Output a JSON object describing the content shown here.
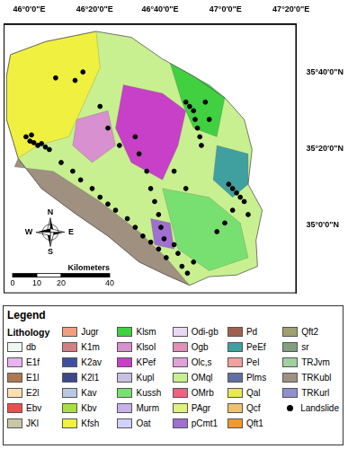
{
  "chart_data": {
    "type": "map",
    "xlim": [
      45.87,
      47.36
    ],
    "xticks": [
      {
        "value": 46,
        "label": "46°0'0\"E"
      },
      {
        "value": 46.3333,
        "label": "46°20'0\"E"
      },
      {
        "value": 46.6667,
        "label": "46°40'0\"E"
      },
      {
        "value": 47,
        "label": "47°0'0\"E"
      },
      {
        "value": 47.3333,
        "label": "47°20'0\"E"
      }
    ],
    "ylim": [
      34.7,
      35.88
    ],
    "yticks": [
      {
        "value": 35,
        "label": "35°0'0\"N"
      },
      {
        "value": 35.3333,
        "label": "35°20'0\"N"
      },
      {
        "value": 35.6667,
        "label": "35°40'0\"N"
      }
    ],
    "grid": false,
    "study_area": {
      "lithology": "OMql",
      "outline": [
        [
          45.905,
          35.746
        ],
        [
          46.083,
          35.803
        ],
        [
          46.341,
          35.848
        ],
        [
          46.52,
          35.822
        ],
        [
          46.679,
          35.727
        ],
        [
          46.837,
          35.652
        ],
        [
          46.996,
          35.557
        ],
        [
          47.095,
          35.462
        ],
        [
          47.135,
          35.33
        ],
        [
          47.115,
          35.178
        ],
        [
          47.187,
          35.064
        ],
        [
          47.155,
          34.932
        ],
        [
          47.163,
          34.818
        ],
        [
          47.056,
          34.78
        ],
        [
          46.917,
          34.773
        ],
        [
          46.817,
          34.735
        ],
        [
          46.698,
          34.78
        ],
        [
          46.56,
          34.837
        ],
        [
          46.401,
          34.951
        ],
        [
          46.242,
          35.045
        ],
        [
          46.063,
          35.159
        ],
        [
          45.944,
          35.292
        ],
        [
          45.885,
          35.462
        ],
        [
          45.885,
          35.652
        ]
      ]
    },
    "lithology_units": [
      {
        "name": "Kfsh",
        "polygon": [
          [
            45.905,
            35.746
          ],
          [
            46.083,
            35.803
          ],
          [
            46.341,
            35.848
          ],
          [
            46.361,
            35.689
          ],
          [
            46.282,
            35.538
          ],
          [
            46.202,
            35.386
          ],
          [
            46.044,
            35.348
          ],
          [
            45.944,
            35.292
          ],
          [
            45.885,
            35.462
          ],
          [
            45.885,
            35.652
          ]
        ]
      },
      {
        "name": "TRKubl",
        "polygon": [
          [
            45.925,
            35.254
          ],
          [
            46.123,
            35.235
          ],
          [
            46.361,
            35.102
          ],
          [
            46.56,
            34.97
          ],
          [
            46.698,
            34.856
          ],
          [
            46.817,
            34.735
          ],
          [
            46.698,
            34.78
          ],
          [
            46.56,
            34.837
          ],
          [
            46.401,
            34.951
          ],
          [
            46.242,
            35.045
          ],
          [
            46.063,
            35.159
          ],
          [
            45.944,
            35.292
          ]
        ]
      },
      {
        "name": "KPef",
        "polygon": [
          [
            46.48,
            35.614
          ],
          [
            46.679,
            35.576
          ],
          [
            46.798,
            35.5
          ],
          [
            46.758,
            35.348
          ],
          [
            46.679,
            35.197
          ],
          [
            46.52,
            35.273
          ],
          [
            46.44,
            35.424
          ]
        ]
      },
      {
        "name": "Klsm",
        "polygon": [
          [
            46.718,
            35.708
          ],
          [
            46.917,
            35.614
          ],
          [
            46.996,
            35.557
          ],
          [
            46.956,
            35.386
          ],
          [
            46.837,
            35.424
          ],
          [
            46.778,
            35.538
          ]
        ]
      },
      {
        "name": "PeEf",
        "polygon": [
          [
            46.956,
            35.348
          ],
          [
            47.115,
            35.311
          ],
          [
            47.115,
            35.178
          ],
          [
            47.036,
            35.121
          ],
          [
            46.937,
            35.197
          ]
        ]
      },
      {
        "name": "Kussh",
        "polygon": [
          [
            46.679,
            35.159
          ],
          [
            46.917,
            35.121
          ],
          [
            47.075,
            35.008
          ],
          [
            47.115,
            34.856
          ],
          [
            46.917,
            34.799
          ],
          [
            46.758,
            34.894
          ]
        ]
      },
      {
        "name": "Klsol",
        "polygon": [
          [
            46.242,
            35.462
          ],
          [
            46.401,
            35.5
          ],
          [
            46.44,
            35.348
          ],
          [
            46.321,
            35.273
          ],
          [
            46.222,
            35.348
          ]
        ]
      },
      {
        "name": "pCmt1",
        "polygon": [
          [
            46.619,
            35.027
          ],
          [
            46.718,
            35.008
          ],
          [
            46.738,
            34.894
          ],
          [
            46.639,
            34.913
          ]
        ]
      }
    ],
    "landslides": {
      "name": "Landslide",
      "color": "#000000",
      "marker": "circle",
      "points": [
        [
          46.135,
          35.644
        ],
        [
          46.234,
          35.633
        ],
        [
          46.274,
          35.67
        ],
        [
          45.984,
          35.386
        ],
        [
          46.004,
          35.367
        ],
        [
          46.024,
          35.36
        ],
        [
          46.044,
          35.348
        ],
        [
          46.063,
          35.356
        ],
        [
          46.083,
          35.341
        ],
        [
          46.103,
          35.33
        ],
        [
          46.012,
          35.394
        ],
        [
          46.163,
          35.273
        ],
        [
          46.222,
          35.235
        ],
        [
          46.262,
          35.197
        ],
        [
          46.321,
          35.159
        ],
        [
          46.361,
          35.121
        ],
        [
          46.401,
          35.091
        ],
        [
          46.44,
          35.064
        ],
        [
          46.5,
          35.027
        ],
        [
          46.54,
          34.989
        ],
        [
          46.579,
          34.951
        ],
        [
          46.619,
          34.924
        ],
        [
          46.659,
          34.894
        ],
        [
          46.698,
          34.856
        ],
        [
          46.54,
          35.386
        ],
        [
          46.56,
          35.311
        ],
        [
          46.599,
          35.235
        ],
        [
          46.619,
          35.159
        ],
        [
          46.639,
          35.102
        ],
        [
          46.659,
          35.045
        ],
        [
          46.671,
          34.989
        ],
        [
          46.687,
          34.939
        ],
        [
          46.738,
          34.913
        ],
        [
          46.758,
          34.875
        ],
        [
          46.778,
          34.818
        ],
        [
          46.806,
          34.788
        ],
        [
          46.837,
          34.837
        ],
        [
          46.798,
          35.538
        ],
        [
          46.817,
          35.519
        ],
        [
          46.837,
          35.5
        ],
        [
          46.845,
          35.462
        ],
        [
          46.857,
          35.424
        ],
        [
          46.869,
          35.386
        ],
        [
          46.877,
          35.348
        ],
        [
          46.897,
          35.538
        ],
        [
          46.917,
          35.462
        ],
        [
          47.016,
          35.178
        ],
        [
          47.036,
          35.159
        ],
        [
          47.056,
          35.14
        ],
        [
          47.075,
          35.121
        ],
        [
          47.095,
          35.102
        ],
        [
          47.036,
          35.064
        ],
        [
          47.115,
          35.045
        ],
        [
          46.996,
          35.008
        ],
        [
          46.956,
          34.97
        ],
        [
          46.401,
          35.424
        ],
        [
          46.46,
          35.348
        ],
        [
          46.361,
          35.519
        ],
        [
          46.738,
          35.235
        ],
        [
          46.798,
          35.159
        ]
      ]
    },
    "legend_title": "Legend",
    "legend_heading": "Lithology",
    "legend_items": [
      {
        "name": "db",
        "color": "#eef8f2"
      },
      {
        "name": "E1f",
        "color": "#e8b4f0"
      },
      {
        "name": "E1l",
        "color": "#b07850"
      },
      {
        "name": "E2l",
        "color": "#fde0b0"
      },
      {
        "name": "Ebv",
        "color": "#e85050"
      },
      {
        "name": "JKl",
        "color": "#c8c8a8"
      },
      {
        "name": "Jugr",
        "color": "#f0a080"
      },
      {
        "name": "K1m",
        "color": "#d08080"
      },
      {
        "name": "K2av",
        "color": "#4050a0"
      },
      {
        "name": "K2l1",
        "color": "#3a4a8a"
      },
      {
        "name": "Kav",
        "color": "#b8c8e0"
      },
      {
        "name": "Kbv",
        "color": "#a8e040"
      },
      {
        "name": "Kfsh",
        "color": "#f0f040"
      },
      {
        "name": "Klsm",
        "color": "#40d040"
      },
      {
        "name": "Klsol",
        "color": "#d890d0"
      },
      {
        "name": "KPef",
        "color": "#c840c8"
      },
      {
        "name": "Kupl",
        "color": "#c8c0e0"
      },
      {
        "name": "Kussh",
        "color": "#78e070"
      },
      {
        "name": "Murm",
        "color": "#c8b0e8"
      },
      {
        "name": "Oat",
        "color": "#d0d0ff"
      },
      {
        "name": "Odi-gb",
        "color": "#e8d8f0"
      },
      {
        "name": "Ogb",
        "color": "#e090b8"
      },
      {
        "name": "Olc,s",
        "color": "#e0a0d8"
      },
      {
        "name": "OMql",
        "color": "#c8f090"
      },
      {
        "name": "OMrb",
        "color": "#f06080"
      },
      {
        "name": "PAgr",
        "color": "#e0f080"
      },
      {
        "name": "pCmt1",
        "color": "#a070d0"
      },
      {
        "name": "Pd",
        "color": "#a06050"
      },
      {
        "name": "PeEf",
        "color": "#40a0a0"
      },
      {
        "name": "Pel",
        "color": "#f0a0a0"
      },
      {
        "name": "Plms",
        "color": "#6070a0"
      },
      {
        "name": "Qal",
        "color": "#e8e850"
      },
      {
        "name": "Qcf",
        "color": "#f0c070"
      },
      {
        "name": "Qft1",
        "color": "#f09830"
      },
      {
        "name": "Qft2",
        "color": "#a0a070"
      },
      {
        "name": "sr",
        "color": "#80a080"
      },
      {
        "name": "TRJvm",
        "color": "#a0d0a0"
      },
      {
        "name": "TRKubl",
        "color": "#a09080"
      },
      {
        "name": "TRKurl",
        "color": "#9090d0"
      }
    ],
    "scale_bar": {
      "ticks": [
        0,
        10,
        20,
        40
      ],
      "unit": "Kilometers"
    },
    "north_arrow": {
      "N": "N",
      "S": "S",
      "E": "E",
      "W": "W"
    }
  }
}
